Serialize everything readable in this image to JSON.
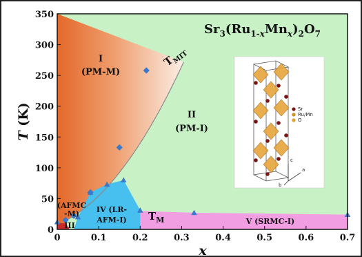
{
  "chart_data": {
    "type": "scatter",
    "title": "Sr3(Ru1-xMnx)2O7",
    "xlabel": "x",
    "ylabel": "T (K)",
    "xlim": [
      0,
      0.7
    ],
    "ylim": [
      0,
      350
    ],
    "xticks": [
      "0",
      "0.1",
      "0.2",
      "0.3",
      "0.4",
      "0.5",
      "0.6",
      "0.7"
    ],
    "yticks": [
      "0",
      "50",
      "100",
      "150",
      "200",
      "250",
      "300",
      "350"
    ],
    "series": [
      {
        "name": "T_MIT",
        "marker": "diamond",
        "color": "#3a78c9",
        "points": [
          [
            0.215,
            258
          ],
          [
            0.15,
            133
          ],
          [
            0.08,
            60
          ],
          [
            0.04,
            22
          ],
          [
            0.02,
            15
          ]
        ]
      },
      {
        "name": "T_M",
        "marker": "triangle",
        "color": "#3a78c9",
        "points": [
          [
            0.0,
            12
          ],
          [
            0.05,
            20
          ],
          [
            0.08,
            60
          ],
          [
            0.12,
            73
          ],
          [
            0.16,
            80
          ],
          [
            0.2,
            31
          ],
          [
            0.33,
            27
          ],
          [
            0.7,
            24
          ]
        ]
      }
    ],
    "curve_labels": {
      "mit": "T",
      "mit_sub": "MIT",
      "m": "T",
      "m_sub": "M"
    },
    "regions": [
      {
        "id": "I",
        "label": "I",
        "sub": "(PM-M)",
        "color": "#e8773b"
      },
      {
        "id": "II",
        "label": "II",
        "sub": "(PM-I)",
        "color": "#c8f2c6"
      },
      {
        "id": "III",
        "label": "III",
        "color": "#cc2a2a"
      },
      {
        "id": "IV",
        "label": "IV (LR-",
        "sub": "AFM-I)",
        "color": "#47bfef"
      },
      {
        "id": "V",
        "label": "V (SRMC-I)",
        "color": "#f19fe2"
      },
      {
        "id": "AFMC",
        "label": "(AFMC",
        "sub": "-M)"
      }
    ],
    "title_parts": {
      "a": "Sr",
      "b": "3",
      "c": "(Ru",
      "d": "1-",
      "e": "x",
      "f": "Mn",
      "g": "x",
      "h": ")",
      "i": "2",
      "j": "O",
      "k": "7"
    },
    "ylabel_parts": {
      "var": "T",
      "unit": " (K)"
    },
    "inset": {
      "legend": [
        "Sr",
        "Ru/Mn",
        "O"
      ],
      "legend_colors": [
        "#7a1515",
        "#d09020",
        "#e0a030"
      ],
      "axes": [
        "c",
        "a",
        "b"
      ]
    }
  }
}
